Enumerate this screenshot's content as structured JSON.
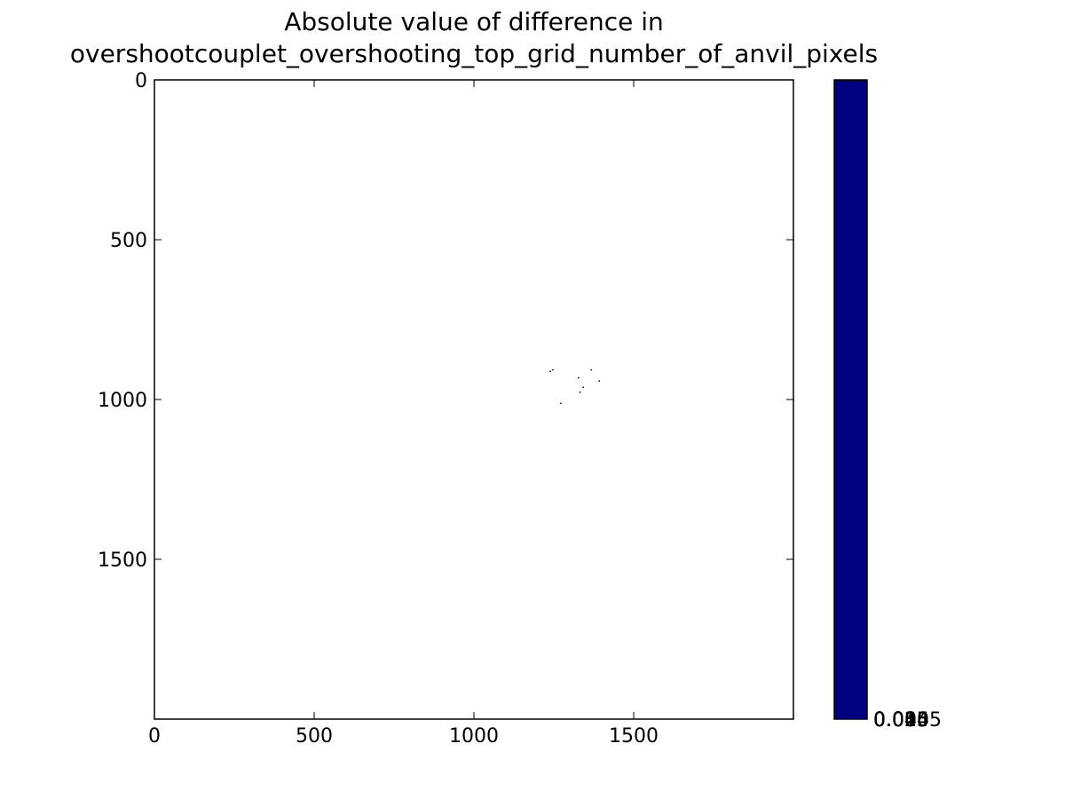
{
  "chart_data": {
    "type": "heatmap",
    "title_lines": [
      "Absolute value of difference in",
      "overshootcouplet_overshooting_top_grid_number_of_anvil_pixels"
    ],
    "xlim": [
      0,
      2000
    ],
    "ylim": [
      2000,
      0
    ],
    "x_ticks": [
      0,
      500,
      1000,
      1500
    ],
    "y_ticks": [
      0,
      500,
      1000,
      1500
    ],
    "x_tick_labels": [
      "0",
      "500",
      "1000",
      "1500"
    ],
    "y_tick_labels": [
      "0",
      "500",
      "1000",
      "1500"
    ],
    "grid": false,
    "background_color": "#ffffff",
    "nonzero_pixels": [
      {
        "x": 1237,
        "y": 910
      },
      {
        "x": 1245,
        "y": 905
      },
      {
        "x": 1325,
        "y": 930
      },
      {
        "x": 1340,
        "y": 960
      },
      {
        "x": 1330,
        "y": 975
      },
      {
        "x": 1365,
        "y": 905
      },
      {
        "x": 1390,
        "y": 940
      },
      {
        "x": 1270,
        "y": 1010
      }
    ],
    "pixel_color": "#000000",
    "colorbar": {
      "color": "#000080",
      "tick_labels_overlapping": [
        "0.000",
        "0.005",
        "0.010",
        "0.015",
        "0.025",
        "0.035",
        "0.045"
      ],
      "visible_label": "0.0045"
    }
  }
}
